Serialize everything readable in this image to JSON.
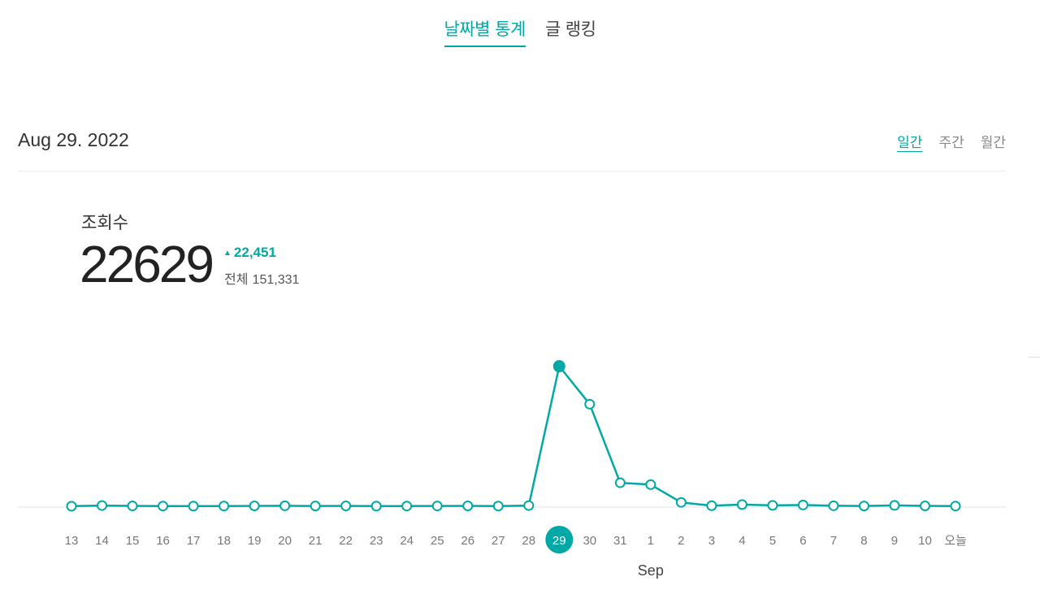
{
  "tabs": [
    {
      "label": "날짜별 통계",
      "active": true
    },
    {
      "label": "글 랭킹",
      "active": false
    }
  ],
  "date_label": "Aug 29. 2022",
  "periods": [
    {
      "label": "일간",
      "active": true
    },
    {
      "label": "주간",
      "active": false
    },
    {
      "label": "월간",
      "active": false
    }
  ],
  "metric": {
    "title": "조회수",
    "value": "22629",
    "delta": "22,451",
    "total_label": "전체",
    "total_value": "151,331"
  },
  "colors": {
    "accent": "#00a9a5",
    "axis": "#e6e6e6"
  },
  "chart_data": {
    "type": "line",
    "categories": [
      "13",
      "14",
      "15",
      "16",
      "17",
      "18",
      "19",
      "20",
      "21",
      "22",
      "23",
      "24",
      "25",
      "26",
      "27",
      "28",
      "29",
      "30",
      "31",
      "1",
      "2",
      "3",
      "4",
      "5",
      "6",
      "7",
      "8",
      "9",
      "10",
      "오늘"
    ],
    "series": [
      {
        "values": [
          20,
          120,
          60,
          40,
          30,
          45,
          70,
          80,
          50,
          60,
          30,
          40,
          55,
          70,
          40,
          120,
          22629,
          16500,
          3800,
          3500,
          630,
          100,
          280,
          150,
          210,
          90,
          50,
          140,
          70,
          40
        ]
      }
    ],
    "selected_index": 16,
    "month_label": "Sep",
    "month_label_index": 19,
    "ylim": [
      0,
      23500
    ],
    "grid": false,
    "legend": "none"
  }
}
